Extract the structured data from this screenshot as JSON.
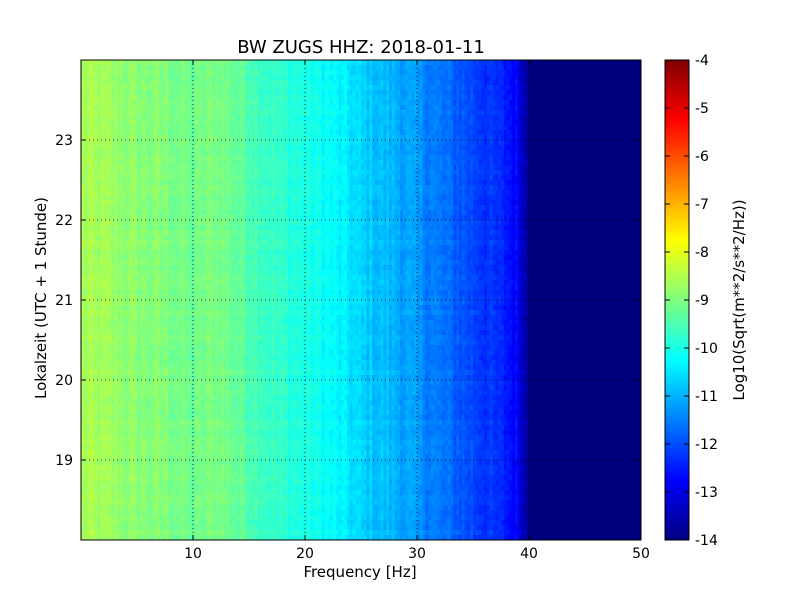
{
  "chart_data": {
    "type": "heatmap",
    "title": "BW ZUGS HHZ: 2018-01-11",
    "xlabel": "Frequency [Hz]",
    "ylabel": "Lokalzeit (UTC + 1 Stunde)",
    "colorbar_label": "Log10(Sqrt(m**2/s**2/Hz))",
    "colormap": "jet",
    "xlim": [
      0,
      50
    ],
    "ylim": [
      24.0,
      18.0
    ],
    "color_range": [
      -14,
      -4
    ],
    "x_ticks": [
      "10",
      "20",
      "30",
      "40",
      "50"
    ],
    "x_tick_values": [
      10,
      20,
      30,
      40,
      50
    ],
    "y_ticks": [
      "19",
      "20",
      "21",
      "22",
      "23"
    ],
    "y_tick_values": [
      19,
      20,
      21,
      22,
      23
    ],
    "colorbar_ticks": [
      "-4",
      "-5",
      "-6",
      "-7",
      "-8",
      "-9",
      "-10",
      "-11",
      "-12",
      "-13",
      "-14"
    ],
    "colorbar_tick_values": [
      -4,
      -5,
      -6,
      -7,
      -8,
      -9,
      -10,
      -11,
      -12,
      -13,
      -14
    ],
    "grid": true,
    "grid_style": "dotted",
    "spectral_profile": {
      "frequency_hz": [
        0,
        2,
        5,
        8,
        10,
        12,
        13,
        15,
        17,
        20,
        22,
        24,
        25,
        28,
        30,
        32,
        34,
        36,
        38,
        39,
        40,
        45,
        50
      ],
      "log10_psd": [
        -8.6,
        -8.7,
        -8.9,
        -9.0,
        -9.2,
        -9.0,
        -9.1,
        -9.4,
        -9.7,
        -10.0,
        -10.2,
        -10.5,
        -10.7,
        -11.0,
        -11.3,
        -11.6,
        -11.9,
        -12.2,
        -12.5,
        -12.8,
        -13.9,
        -14.0,
        -14.0
      ]
    },
    "colors": {
      "jet": [
        "#00007f",
        "#0000ff",
        "#007fff",
        "#00ffff",
        "#7fff7f",
        "#ffff00",
        "#ff7f00",
        "#ff0000",
        "#7f0000"
      ],
      "background": "#ffffff",
      "axis": "#000000"
    }
  }
}
